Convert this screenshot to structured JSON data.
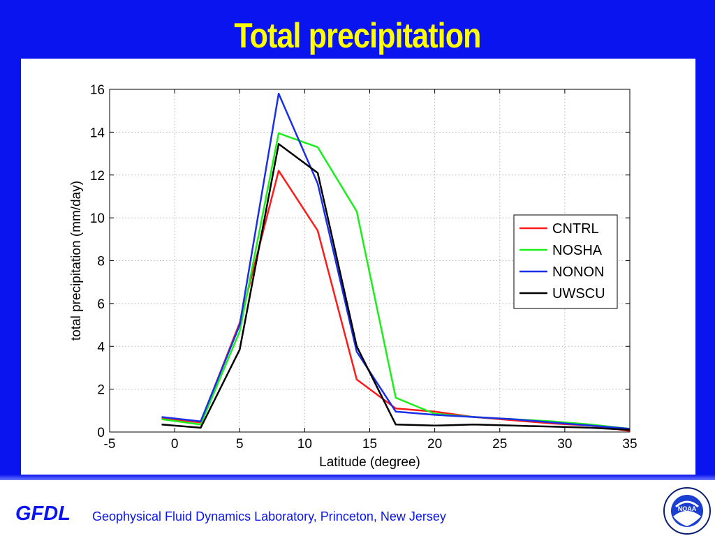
{
  "slide": {
    "title": "Total precipitation",
    "footer_logo": "GFDL",
    "footer_text": "Geophysical Fluid Dynamics Laboratory, Princeton, New Jersey",
    "noaa_logo_text": "NOAA"
  },
  "colors": {
    "frame": "#0a14ee",
    "title": "#ffff00",
    "footer": "#0a14ee"
  },
  "chart_data": {
    "type": "line",
    "title": "",
    "xlabel": "Latitude (degree)",
    "ylabel": "total precipitation (mm/day)",
    "xlim": [
      -5,
      35
    ],
    "ylim": [
      0,
      16
    ],
    "xticks": [
      -5,
      0,
      5,
      10,
      15,
      20,
      25,
      30,
      35
    ],
    "yticks": [
      0,
      2,
      4,
      6,
      8,
      10,
      12,
      14,
      16
    ],
    "grid": true,
    "legend_position": "right",
    "x": [
      -1,
      2,
      5,
      8,
      11,
      14,
      17,
      20,
      23,
      26,
      29,
      32,
      35
    ],
    "series": [
      {
        "name": "CNTRL",
        "color": "#ff1a1a",
        "values": [
          0.65,
          0.45,
          5.1,
          12.2,
          9.4,
          2.45,
          1.1,
          0.95,
          0.7,
          0.55,
          0.4,
          0.3,
          0.05
        ]
      },
      {
        "name": "NOSHA",
        "color": "#1aef1a",
        "values": [
          0.6,
          0.35,
          4.7,
          13.95,
          13.3,
          10.3,
          1.6,
          0.85,
          0.7,
          0.6,
          0.5,
          0.35,
          0.15
        ]
      },
      {
        "name": "NONON",
        "color": "#1a2fe6",
        "values": [
          0.7,
          0.5,
          5.0,
          15.8,
          11.6,
          3.75,
          0.95,
          0.8,
          0.7,
          0.6,
          0.45,
          0.3,
          0.15
        ]
      },
      {
        "name": "UWSCU",
        "color": "#000000",
        "values": [
          0.35,
          0.2,
          3.85,
          13.45,
          12.1,
          4.0,
          0.35,
          0.3,
          0.35,
          0.3,
          0.25,
          0.2,
          0.1
        ]
      }
    ]
  }
}
